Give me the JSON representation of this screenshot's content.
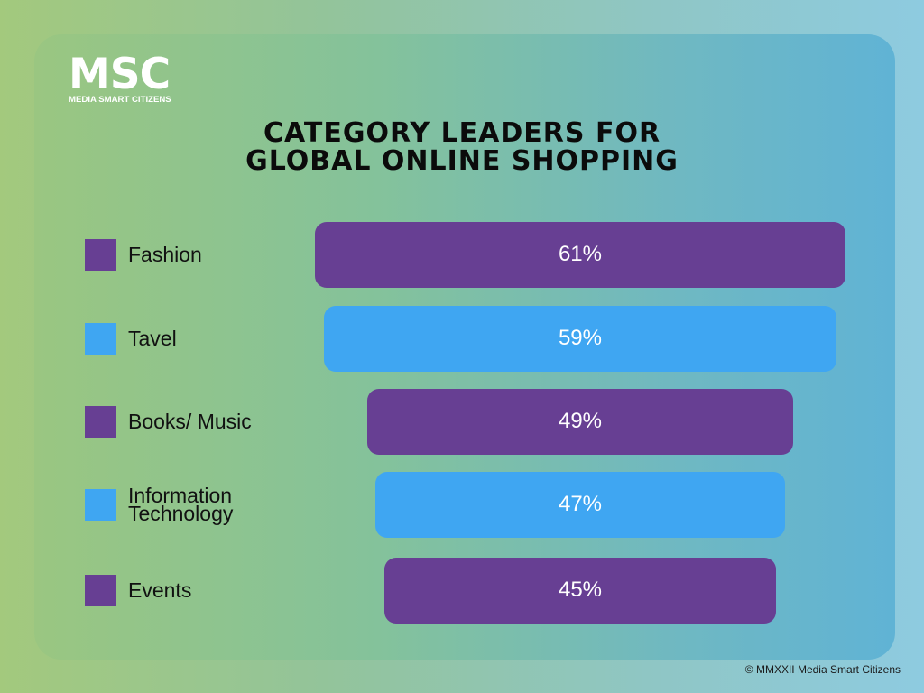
{
  "logo": {
    "main": "MSC",
    "sub": "MEDIA SMART CITIZENS"
  },
  "colors": {
    "purple": "#673f93",
    "blue": "#3fa6f2"
  },
  "copyright": "© MMXXII Media Smart Citizens",
  "chart_data": {
    "type": "bar",
    "orientation": "horizontal-centered",
    "title": [
      "CATEGORY LEADERS FOR",
      "GLOBAL ONLINE SHOPPING"
    ],
    "categories": [
      "Fashion",
      "Tavel",
      "Books/ Music",
      "Information Technology",
      "Events"
    ],
    "category_lines": [
      [
        "Fashion"
      ],
      [
        "Tavel"
      ],
      [
        "Books/ Music"
      ],
      [
        "Information",
        "Technology"
      ],
      [
        "Events"
      ]
    ],
    "values": [
      61,
      59,
      49,
      47,
      45
    ],
    "value_labels": [
      "61%",
      "59%",
      "49%",
      "47%",
      "45%"
    ],
    "bar_colors": [
      "#673f93",
      "#3fa6f2",
      "#673f93",
      "#3fa6f2",
      "#673f93"
    ],
    "unit": "%",
    "legend": "left"
  }
}
